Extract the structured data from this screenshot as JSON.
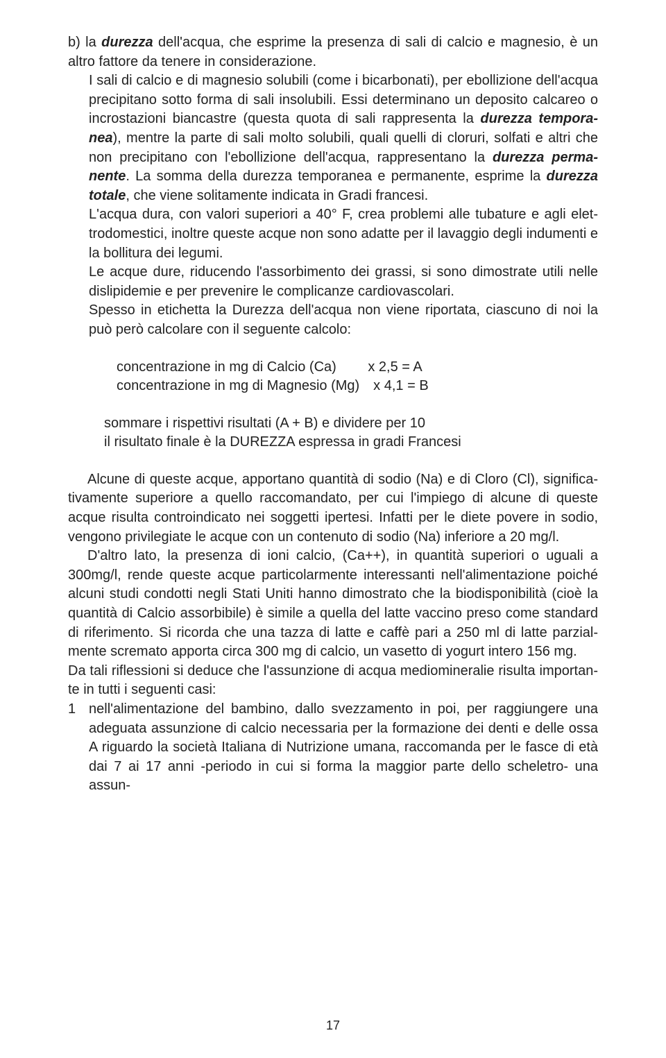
{
  "para_b": "b) la <em class=\"bi\">durezza</em> dell'acqua, che esprime la presenza di sali di calcio e magnesio, è un altro fattore da tenere in considerazione.",
  "para_b2": "I sali di calcio e di magnesio solubili (come i bicarbonati), per ebollizione dell'acqua precipitano sotto forma di sali insolubili. Essi determinano un deposito calcareo o incrostazioni biancastre (questa quota di sali rappresenta la <em class=\"bi\">durezza tempora-nea</em>), mentre la parte di sali molto solubili, quali quelli di cloruri, solfati e altri che non precipitano con l'ebollizione dell'acqua, rappresentano la <em class=\"bi\">durezza perma-nente</em>. La somma della durezza temporanea e permanente, esprime la <em class=\"bi\">durezza totale</em>, che viene solitamente indicata in Gradi francesi.",
  "para_b3": "L'acqua dura, con valori superiori a 40° F, crea problemi alle tubature e agli elet-trodomestici, inoltre queste acque non sono adatte per il lavaggio degli indumenti e la bollitura dei legumi.",
  "para_b4": "Le acque dure, riducendo l'assorbimento dei grassi, si sono dimostrate utili nelle dislipidemie e per prevenire le complicanze cardiovascolari.",
  "para_b5": "Spesso in etichetta la Durezza dell'acqua non viene riportata, ciascuno di noi la può però calcolare con il seguente calcolo:",
  "calc1": "concentrazione in mg di  Calcio (Ca)   x  2,5 = A",
  "calc2": "concentrazione in mg di Magnesio (Mg) x  4,1 = B",
  "calc3": "sommare i rispettivi risultati (A + B) e dividere per 10",
  "calc4": "il risultato finale è la DUREZZA espressa in gradi Francesi",
  "para_c1": "Alcune di queste acque, apportano quantità di sodio (Na) e di Cloro (Cl), significa-tivamente superiore a quello raccomandato, per cui l'impiego di alcune di queste acque risulta controindicato nei soggetti ipertesi. Infatti per le diete povere in sodio, vengono privilegiate le acque con un contenuto di sodio (Na) inferiore a 20 mg/l.",
  "para_c2": "D'altro lato, la presenza di ioni calcio, (Ca++), in quantità superiori o uguali a 300mg/l, rende queste acque particolarmente interessanti nell'alimentazione poiché alcuni studi condotti negli Stati Uniti hanno dimostrato che la biodisponibilità (cioè la quantità di Calcio assorbibile) è simile a quella del latte vaccino preso come standard di riferimento. Si ricorda che una tazza di latte e caffè pari a 250 ml di latte parzial-mente scremato apporta circa 300 mg di calcio, un vasetto di yogurt intero 156 mg.",
  "para_c3": "Da tali riflessioni si deduce che l'assunzione di acqua mediomineralie risulta importan-te in tutti i seguenti casi:",
  "list1_marker": "1",
  "list1": "nell'alimentazione del bambino, dallo svezzamento in poi, per raggiungere una adeguata assunzione di calcio necessaria per la formazione dei denti e delle ossa A riguardo la società Italiana di Nutrizione umana, raccomanda per le fasce di età dai 7 ai 17 anni -periodo in cui si forma la maggior parte dello scheletro- una assun-",
  "page_number": "17"
}
